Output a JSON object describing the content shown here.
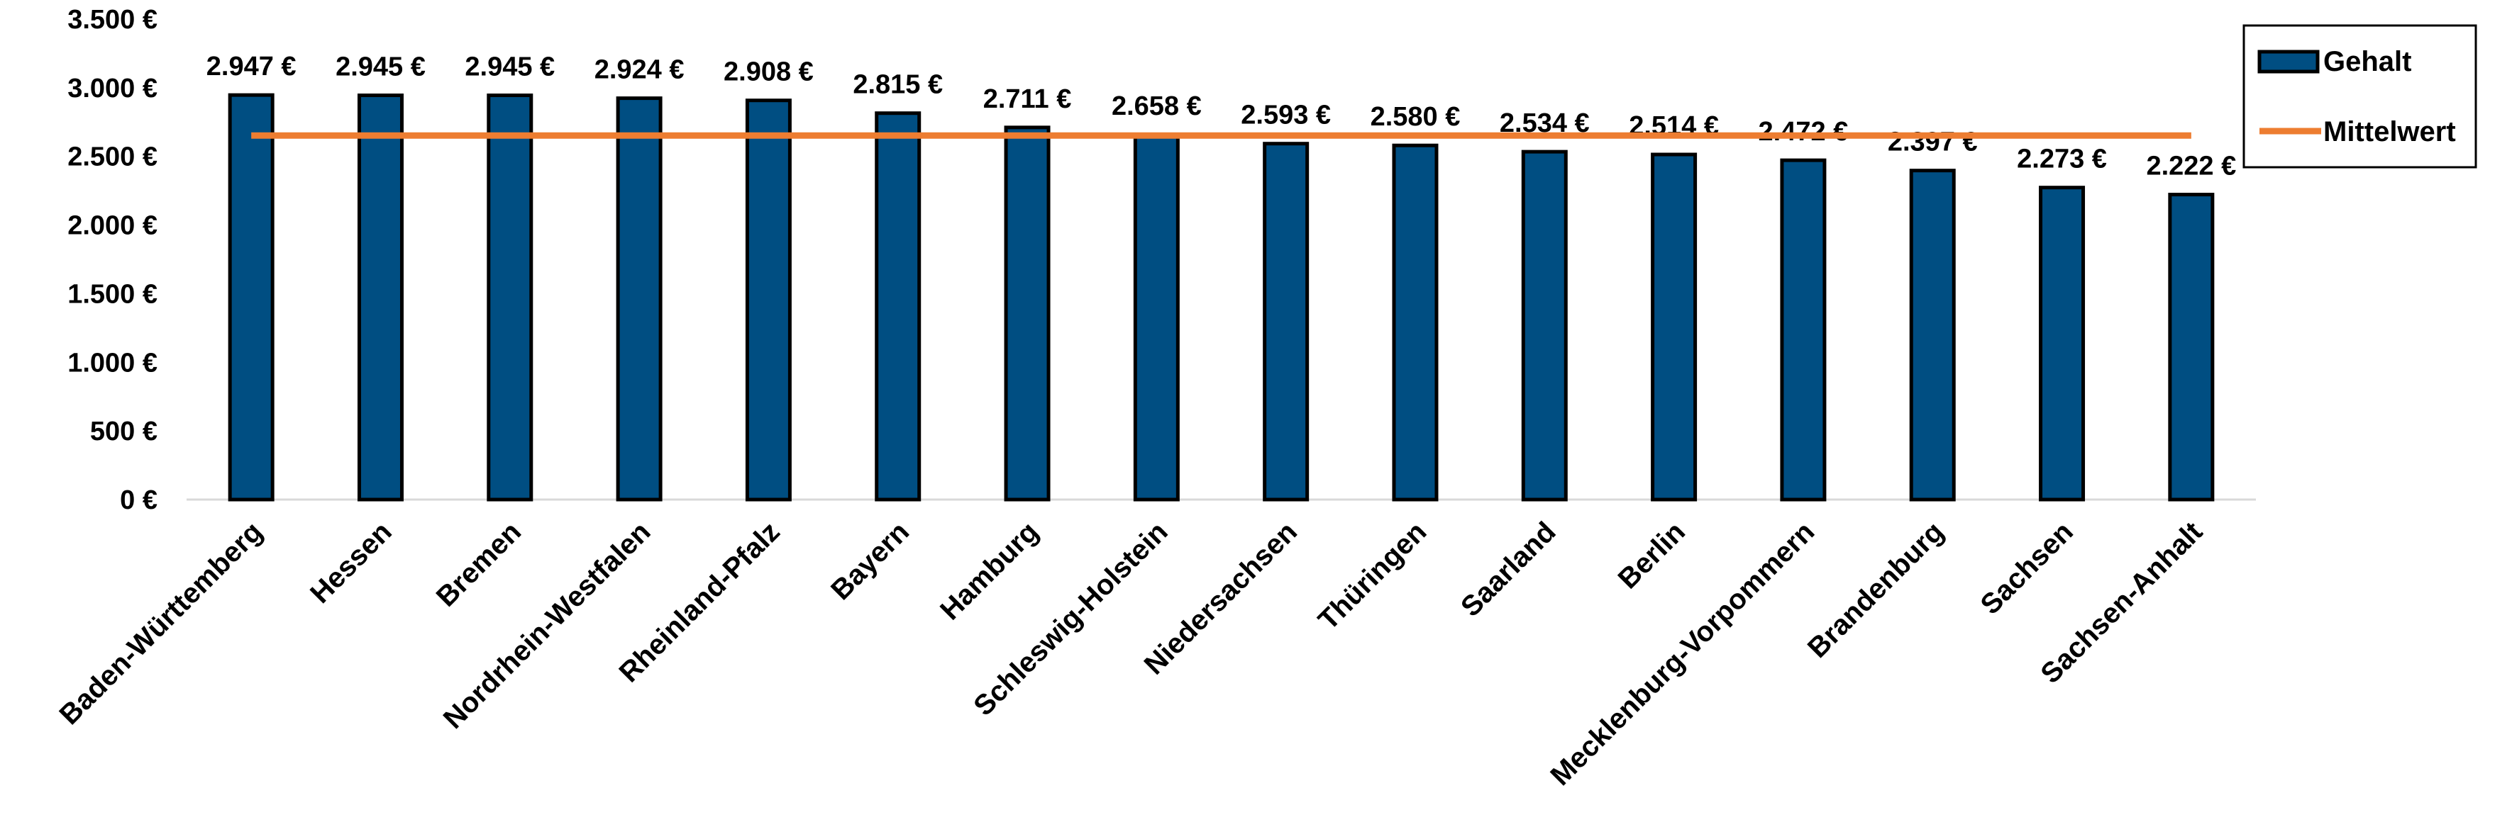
{
  "chart_data": {
    "type": "bar",
    "categories": [
      "Baden-Württemberg",
      "Hessen",
      "Bremen",
      "Nordrhein-Westfalen",
      "Rheinland-Pfalz",
      "Bayern",
      "Hamburg",
      "Schleswig-Holstein",
      "Niedersachsen",
      "Thüringen",
      "Saarland",
      "Berlin",
      "Mecklenburg-Vorpommern",
      "Brandenburg",
      "Sachsen",
      "Sachsen-Anhalt"
    ],
    "series": [
      {
        "name": "Gehalt",
        "type": "bar",
        "color": "#004e82",
        "values": [
          2947,
          2945,
          2945,
          2924,
          2908,
          2815,
          2711,
          2658,
          2593,
          2580,
          2534,
          2514,
          2472,
          2397,
          2273,
          2222
        ],
        "labels": [
          "2.947 €",
          "2.945 €",
          "2.945 €",
          "2.924 €",
          "2.908 €",
          "2.815 €",
          "2.711 €",
          "2.658 €",
          "2.593 €",
          "2.580 €",
          "2.534 €",
          "2.514 €",
          "2.472 €",
          "2.397 €",
          "2.273 €",
          "2.222 €"
        ]
      },
      {
        "name": "Mittelwert",
        "type": "line",
        "color": "#ed7d31",
        "value": 2652
      }
    ],
    "y_ticks": [
      0,
      500,
      1000,
      1500,
      2000,
      2500,
      3000,
      3500
    ],
    "y_tick_labels": [
      "0 €",
      "500 €",
      "1.000 €",
      "1.500 €",
      "2.000 €",
      "2.500 €",
      "3.000 €",
      "3.500 €"
    ],
    "ylim": [
      0,
      3500
    ],
    "title": "",
    "xlabel": "",
    "ylabel": "",
    "grid": false,
    "legend": "right"
  }
}
